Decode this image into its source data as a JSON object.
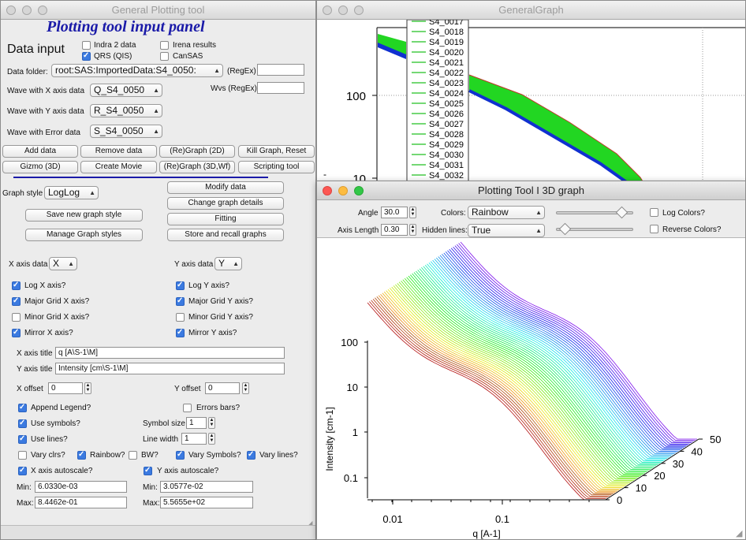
{
  "panel": {
    "window_title": "General Plotting tool",
    "heading": "Plotting tool input panel",
    "data_input": "Data input",
    "indra2": "Indra 2 data",
    "irena": "Irena results",
    "qrs": "QRS (QIS)",
    "cansas": "CanSAS",
    "data_folder_label": "Data folder:",
    "data_folder_value": "root:SAS:ImportedData:S4_0050:",
    "regex_label": "(RegEx)",
    "wvs_regex_label": "Wvs (RegEx)",
    "x_wave_label": "Wave with X axis data",
    "x_wave_value": "Q_S4_0050",
    "y_wave_label": "Wave with Y axis data",
    "y_wave_value": "R_S4_0050",
    "err_wave_label": "Wave with Error data",
    "err_wave_value": "S_S4_0050",
    "buttons": {
      "add_data": "Add data",
      "remove_data": "Remove data",
      "regraph_2d": "(Re)Graph (2D)",
      "kill_graph": "Kill Graph, Reset",
      "gizmo": "Gizmo (3D)",
      "create_movie": "Create Movie",
      "regraph_3d": "(Re)Graph (3D,Wf)",
      "scripting": "Scripting tool",
      "modify_data": "Modify data",
      "change_graph": "Change graph details",
      "fitting": "Fitting",
      "save_style": "Save new graph style",
      "store_recall": "Store and recall graphs",
      "manage_styles": "Manage Graph styles"
    },
    "graph_style_label": "Graph style",
    "graph_style_value": "LogLog",
    "x_axis_data_label": "X axis data",
    "x_axis_data_value": "X",
    "y_axis_data_label": "Y axis data",
    "y_axis_data_value": "Y",
    "log_x": "Log X axis?",
    "log_y": "Log Y axis?",
    "major_x": "Major Grid X axis?",
    "major_y": "Major Grid Y axis?",
    "minor_x": "Minor Grid X axis?",
    "minor_y": "Minor Grid Y axis?",
    "mirror_x": "Mirror X axis?",
    "mirror_y": "Mirror Y axis?",
    "x_title_label": "X axis title",
    "x_title_value": "q [A\\S-1\\M]",
    "y_title_label": "Y axis title",
    "y_title_value": "Intensity [cm\\S-1\\M]",
    "x_offset_label": "X offset",
    "x_offset_value": "0",
    "y_offset_label": "Y offset",
    "y_offset_value": "0",
    "append_legend": "Append Legend?",
    "errors_bars": "Errors bars?",
    "use_symbols": "Use symbols?",
    "symbol_size_label": "Symbol size",
    "symbol_size_value": "1",
    "use_lines": "Use lines?",
    "line_width_label": "Line width",
    "line_width_value": "1",
    "vary_clrs": "Vary clrs?",
    "rainbow": "Rainbow?",
    "bw": "BW?",
    "vary_symbols": "Vary Symbols?",
    "vary_lines": "Vary lines?",
    "x_autoscale": "X axis autoscale?",
    "y_autoscale": "Y axis autoscale?",
    "min_label": "Min:",
    "max_label": "Max:",
    "x_min": "6.0330e-03",
    "x_max": "8.4462e-01",
    "y_min": "3.0577e-02",
    "y_max": "5.5655e+02"
  },
  "graph": {
    "window_title": "GeneralGraph",
    "legend": [
      "S4_0017",
      "S4_0018",
      "S4_0019",
      "S4_0020",
      "S4_0021",
      "S4_0022",
      "S4_0023",
      "S4_0024",
      "S4_0025",
      "S4_0026",
      "S4_0027",
      "S4_0028",
      "S4_0029",
      "S4_0030",
      "S4_0031",
      "S4_0032"
    ],
    "y_tick_100": "100",
    "y_tick_10": "10"
  },
  "graph3d": {
    "window_title": "Plotting Tool I 3D graph",
    "angle_label": "Angle",
    "angle_value": "30.0",
    "axis_length_label": "Axis Length",
    "axis_length_value": "0.30",
    "colors_label": "Colors:",
    "colors_value": "Rainbow",
    "hidden_label": "Hidden lines:",
    "hidden_value": "True",
    "log_colors": "Log Colors?",
    "reverse_colors": "Reverse Colors?",
    "slider1_fraction": 0.9,
    "slider2_fraction": 0.06,
    "ylabel": "Intensity [cm-1]",
    "xlabel": "q [A-1]",
    "y_ticks": [
      "100",
      "10",
      "1",
      "0.1"
    ],
    "x_ticks": [
      "0.01",
      "0.1"
    ],
    "z_ticks": [
      "0",
      "10",
      "20",
      "30",
      "40",
      "50"
    ]
  },
  "colors": {
    "accent": "#3b7ae0",
    "heading": "#1a1aa8",
    "curve_green": "#22d622",
    "curve_blue": "#1030d0"
  }
}
